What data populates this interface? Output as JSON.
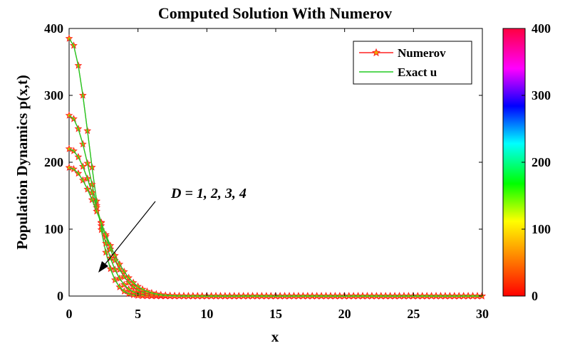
{
  "chart_data": {
    "type": "line",
    "title": "Computed Solution With Numerov",
    "xlabel": "x",
    "ylabel": "Population Dynamics p(x,t)",
    "xlim": [
      0,
      30
    ],
    "ylim": [
      0,
      400
    ],
    "xticks": [
      "0",
      "5",
      "10",
      "15",
      "20",
      "25",
      "30"
    ],
    "yticks": [
      "0",
      "100",
      "200",
      "300",
      "400"
    ],
    "grid": false,
    "legend": {
      "placement": "top-right",
      "entries": [
        "Numerov",
        "Exact u"
      ]
    },
    "annotation": "D = 1, 2, 3, 4",
    "colorbar": {
      "ticks": [
        "0",
        "100",
        "200",
        "300",
        "400"
      ],
      "range": [
        0,
        400
      ],
      "colormap": [
        "#ff0000",
        "#ff8000",
        "#ffff00",
        "#00ff00",
        "#00ffff",
        "#0000ff",
        "#ff00ff",
        "#ff0040"
      ]
    },
    "x_step": 0.333,
    "series": [
      {
        "peak": 385,
        "decay_width": 2.0
      },
      {
        "peak": 270,
        "decay_width": 2.4
      },
      {
        "peak": 220,
        "decay_width": 2.8
      },
      {
        "peak": 192,
        "decay_width": 3.1
      }
    ],
    "colors": {
      "numerov": "#ff2020",
      "numerov_marker_fill": "#e8b000",
      "exact": "#22cc22"
    }
  }
}
